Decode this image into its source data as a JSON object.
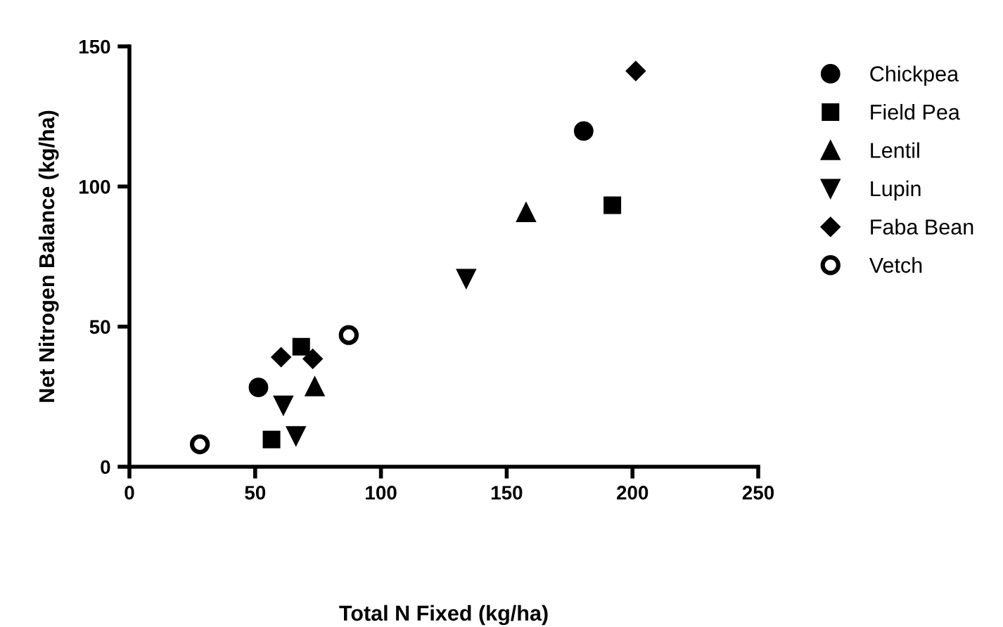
{
  "chart_data": {
    "type": "scatter",
    "xlabel": "Total N Fixed (kg/ha)",
    "ylabel": "Net Nitrogen Balance (kg/ha)",
    "xlim": [
      0,
      250
    ],
    "ylim": [
      0,
      150
    ],
    "xticks": [
      0,
      50,
      100,
      150,
      200,
      250
    ],
    "yticks": [
      0,
      50,
      100,
      150
    ],
    "grid": false,
    "legend": "right",
    "series": [
      {
        "name": "Chickpea",
        "color": "#000000",
        "marker": "circle",
        "x": [
          51.3,
          180.6
        ],
        "values": [
          28.3,
          119.8
        ]
      },
      {
        "name": "Field Pea",
        "color": "#000000",
        "marker": "square",
        "x": [
          56.5,
          68.3,
          192
        ],
        "values": [
          9.7,
          42.8,
          93.3
        ]
      },
      {
        "name": "Lentil",
        "color": "#000000",
        "marker": "triangle",
        "x": [
          73.7,
          157.7
        ],
        "values": [
          28.6,
          90.8
        ]
      },
      {
        "name": "Lupin",
        "color": "#000000",
        "marker": "triangle_down",
        "x": [
          61.2,
          66.2,
          133.9
        ],
        "values": [
          21.9,
          11.0,
          67.1
        ]
      },
      {
        "name": "Faba Bean",
        "color": "#000000",
        "marker": "diamond",
        "x": [
          60.3,
          72.9,
          201.3
        ],
        "values": [
          39.1,
          38.5,
          141.2
        ]
      },
      {
        "name": "Vetch",
        "color": "#000000",
        "marker": "open_circle",
        "x": [
          28.0,
          87.2
        ],
        "values": [
          8.0,
          47.0
        ]
      }
    ]
  }
}
